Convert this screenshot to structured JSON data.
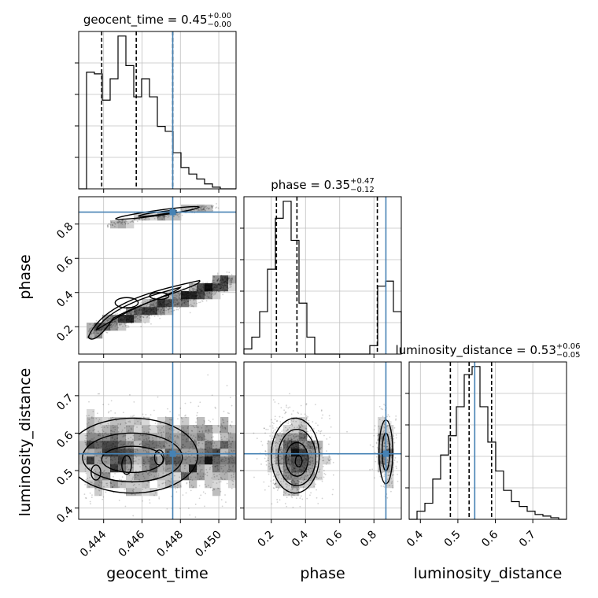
{
  "chart_data": {
    "type": "corner",
    "parameters": [
      {
        "name": "geocent_time",
        "range": [
          0.4427,
          0.4509
        ],
        "ticks": [
          0.444,
          0.446,
          0.448,
          0.45
        ],
        "tick_labels": [
          "0.444",
          "0.446",
          "0.448",
          "0.450"
        ],
        "truth": 0.4476,
        "quantiles": [
          0.4439,
          0.4457,
          0.4476
        ],
        "title": {
          "base": "geocent_time = 0.45",
          "plus": "+0.00",
          "minus": "−0.00"
        },
        "hist": {
          "edges": [
            0.4427,
            0.44311,
            0.44352,
            0.44393,
            0.44434,
            0.44475,
            0.44516,
            0.44557,
            0.44598,
            0.44639,
            0.4468,
            0.44721,
            0.44762,
            0.44803,
            0.44844,
            0.44885,
            0.44926,
            0.44967,
            0.45008,
            0.45049,
            0.4509
          ],
          "counts": [
            0.0,
            0.71,
            0.7,
            0.54,
            0.67,
            0.93,
            0.75,
            0.56,
            0.67,
            0.56,
            0.38,
            0.35,
            0.22,
            0.13,
            0.09,
            0.06,
            0.03,
            0.01,
            0.0,
            0.0
          ]
        }
      },
      {
        "name": "phase",
        "range": [
          0.04,
          0.96
        ],
        "ticks": [
          0.2,
          0.4,
          0.6,
          0.8
        ],
        "tick_labels": [
          "0.2",
          "0.4",
          "0.6",
          "0.8"
        ],
        "truth": 0.87,
        "quantiles": [
          0.23,
          0.35,
          0.82
        ],
        "title": {
          "base": "phase = 0.35",
          "plus": "+0.47",
          "minus": "−0.12"
        },
        "hist": {
          "edges": [
            0.04,
            0.086,
            0.132,
            0.178,
            0.224,
            0.27,
            0.316,
            0.362,
            0.408,
            0.454,
            0.5,
            0.546,
            0.592,
            0.638,
            0.684,
            0.73,
            0.776,
            0.822,
            0.868,
            0.914,
            0.96
          ],
          "counts": [
            0.03,
            0.1,
            0.25,
            0.5,
            0.8,
            0.9,
            0.67,
            0.3,
            0.1,
            0.0,
            0.0,
            0.0,
            0.0,
            0.0,
            0.0,
            0.0,
            0.05,
            0.4,
            0.43,
            0.25
          ]
        }
      },
      {
        "name": "luminosity_distance",
        "range": [
          0.37,
          0.79
        ],
        "ticks": [
          0.4,
          0.5,
          0.6,
          0.7
        ],
        "tick_labels": [
          "0.4",
          "0.5",
          "0.6",
          "0.7"
        ],
        "truth": 0.545,
        "quantiles": [
          0.48,
          0.53,
          0.59
        ],
        "title": {
          "base": "luminosity_distance = 0.53",
          "plus": "+0.06",
          "minus": "−0.05"
        },
        "hist": {
          "edges": [
            0.37,
            0.391,
            0.412,
            0.433,
            0.454,
            0.475,
            0.496,
            0.517,
            0.538,
            0.559,
            0.58,
            0.601,
            0.622,
            0.643,
            0.664,
            0.685,
            0.706,
            0.727,
            0.748,
            0.769,
            0.79
          ],
          "counts": [
            0.0,
            0.05,
            0.1,
            0.25,
            0.4,
            0.52,
            0.7,
            0.9,
            0.95,
            0.7,
            0.48,
            0.3,
            0.18,
            0.11,
            0.08,
            0.05,
            0.03,
            0.02,
            0.01,
            0.0
          ]
        }
      }
    ],
    "colors": {
      "truth": "#4682b4",
      "hist": "#000000",
      "grid": "#c0c0c0",
      "density": "#000000"
    },
    "grid": true
  }
}
